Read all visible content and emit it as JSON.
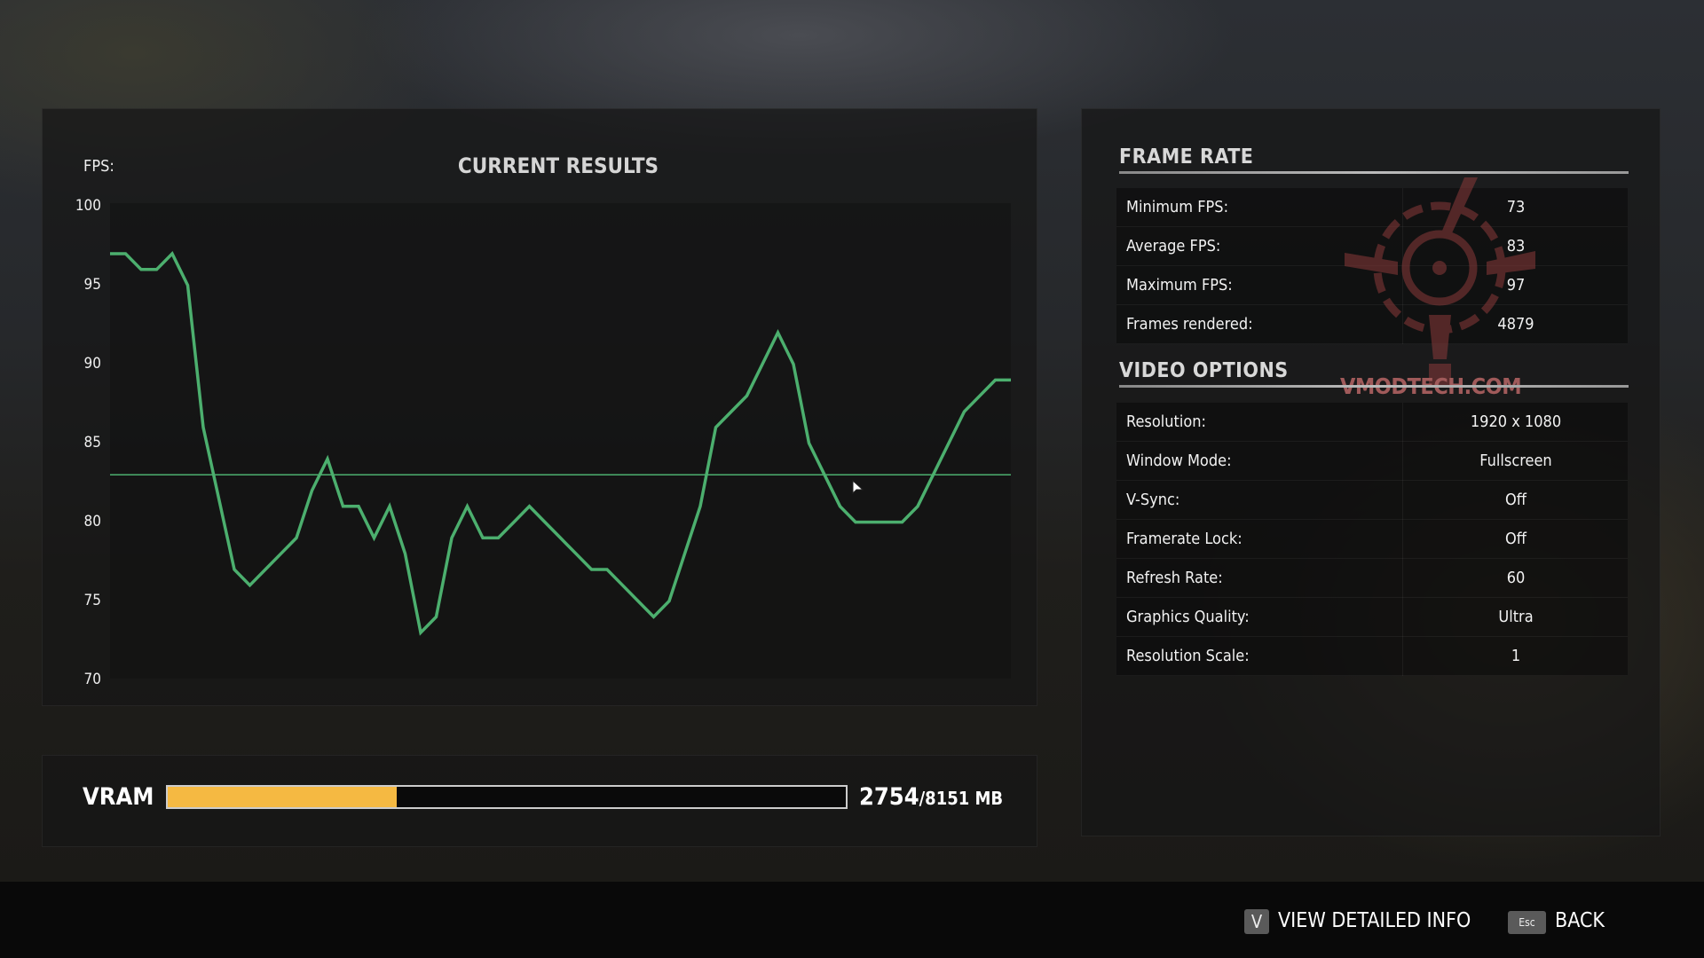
{
  "chart": {
    "fps_label": "FPS:",
    "title": "CURRENT RESULTS"
  },
  "chart_data": {
    "type": "line",
    "title": "CURRENT RESULTS",
    "ylabel": "FPS:",
    "ylim": [
      70,
      100
    ],
    "yticks": [
      "100",
      "95",
      "90",
      "85",
      "80",
      "75",
      "70"
    ],
    "grid": false,
    "series": [
      {
        "values": [
          97,
          97,
          96,
          96,
          97,
          95,
          86,
          81.5,
          77,
          76,
          77,
          78,
          79,
          82,
          84,
          81,
          81,
          79,
          81,
          78,
          73,
          74,
          79,
          81,
          79,
          79,
          80,
          81,
          80,
          79,
          78,
          77,
          77,
          76,
          75,
          74,
          75,
          78,
          81,
          86,
          87,
          88,
          90,
          92,
          90,
          85,
          83,
          81,
          80,
          80,
          80,
          80,
          81,
          83,
          85,
          87,
          88,
          89,
          89
        ],
        "color": "#4caf6e"
      }
    ],
    "average_line": {
      "value": 83,
      "color": "#4caf6e"
    }
  },
  "vram": {
    "label": "VRAM",
    "used": "2754",
    "total": "/8151 MB",
    "fraction": 0.338,
    "fill_color": "#f5b942"
  },
  "frame_rate": {
    "title": "FRAME RATE",
    "rows": [
      {
        "label": "Minimum FPS:",
        "value": "73"
      },
      {
        "label": "Average FPS:",
        "value": "83"
      },
      {
        "label": "Maximum FPS:",
        "value": "97"
      },
      {
        "label": "Frames rendered:",
        "value": "4879"
      }
    ]
  },
  "video_options": {
    "title": "VIDEO OPTIONS",
    "rows": [
      {
        "label": "Resolution:",
        "value": "1920 x 1080"
      },
      {
        "label": "Window Mode:",
        "value": "Fullscreen"
      },
      {
        "label": "V-Sync:",
        "value": "Off"
      },
      {
        "label": "Framerate Lock:",
        "value": "Off"
      },
      {
        "label": "Refresh Rate:",
        "value": "60"
      },
      {
        "label": "Graphics Quality:",
        "value": "Ultra"
      },
      {
        "label": "Resolution Scale:",
        "value": "1"
      }
    ]
  },
  "watermark": {
    "text": "VMODTECH.COM"
  },
  "footer": {
    "detail_key": "V",
    "detail_label": "VIEW DETAILED INFO",
    "back_key": "Esc",
    "back_label": "BACK"
  }
}
